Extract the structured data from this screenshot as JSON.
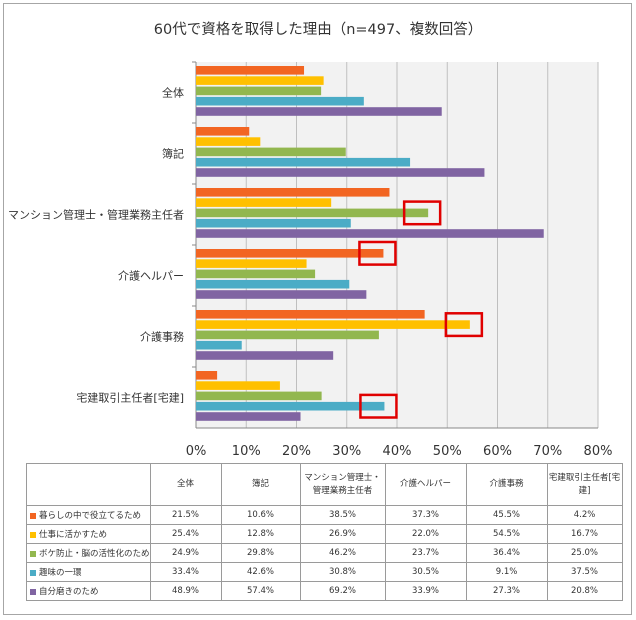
{
  "title": "60代で資格を取得した理由（n=497、複数回答）",
  "chart_data": {
    "type": "bar",
    "orientation": "horizontal",
    "categories": [
      "全体",
      "簿記",
      "マンション管理士・管理業務主任者",
      "介護ヘルパー",
      "介護事務",
      "宅建取引主任者[宅建]"
    ],
    "xlim": [
      0,
      80
    ],
    "xticks": [
      "0%",
      "10%",
      "20%",
      "30%",
      "40%",
      "50%",
      "60%",
      "70%",
      "80%"
    ],
    "grid": true,
    "series": [
      {
        "name": "暮らしの中で役立てるため",
        "color": "#f26522",
        "values": [
          21.5,
          10.6,
          38.5,
          37.3,
          45.5,
          4.2
        ]
      },
      {
        "name": "仕事に活かすため",
        "color": "#ffc000",
        "values": [
          25.4,
          12.8,
          26.9,
          22.0,
          54.5,
          16.7
        ]
      },
      {
        "name": "ボケ防止・脳の活性化のため",
        "color": "#92b74f",
        "values": [
          24.9,
          29.8,
          46.2,
          23.7,
          36.4,
          25.0
        ]
      },
      {
        "name": "趣味の一環",
        "color": "#4bacc6",
        "values": [
          33.4,
          42.6,
          30.8,
          30.5,
          9.1,
          37.5
        ]
      },
      {
        "name": "自分磨きのため",
        "color": "#8064a2",
        "values": [
          48.9,
          57.4,
          69.2,
          33.9,
          27.3,
          20.8
        ]
      }
    ],
    "highlights": [
      {
        "category_index": 2,
        "series_index": 2
      },
      {
        "category_index": 3,
        "series_index": 0
      },
      {
        "category_index": 4,
        "series_index": 1
      },
      {
        "category_index": 5,
        "series_index": 3
      }
    ],
    "highlight_color": "#e00000"
  },
  "table": {
    "headers": [
      "全体",
      "簿記",
      "マンション管理士・\n管理業務主任者",
      "介護ヘルパー",
      "介護事務",
      "宅建取引主任者[宅\n建]"
    ],
    "rows": [
      {
        "label": "暮らしの中で役立てるため",
        "values": [
          "21.5%",
          "10.6%",
          "38.5%",
          "37.3%",
          "45.5%",
          "4.2%"
        ]
      },
      {
        "label": "仕事に活かすため",
        "values": [
          "25.4%",
          "12.8%",
          "26.9%",
          "22.0%",
          "54.5%",
          "16.7%"
        ]
      },
      {
        "label": "ボケ防止・脳の活性化のため",
        "values": [
          "24.9%",
          "29.8%",
          "46.2%",
          "23.7%",
          "36.4%",
          "25.0%"
        ]
      },
      {
        "label": "趣味の一環",
        "values": [
          "33.4%",
          "42.6%",
          "30.8%",
          "30.5%",
          "9.1%",
          "37.5%"
        ]
      },
      {
        "label": "自分磨きのため",
        "values": [
          "48.9%",
          "57.4%",
          "69.2%",
          "33.9%",
          "27.3%",
          "20.8%"
        ]
      }
    ]
  }
}
